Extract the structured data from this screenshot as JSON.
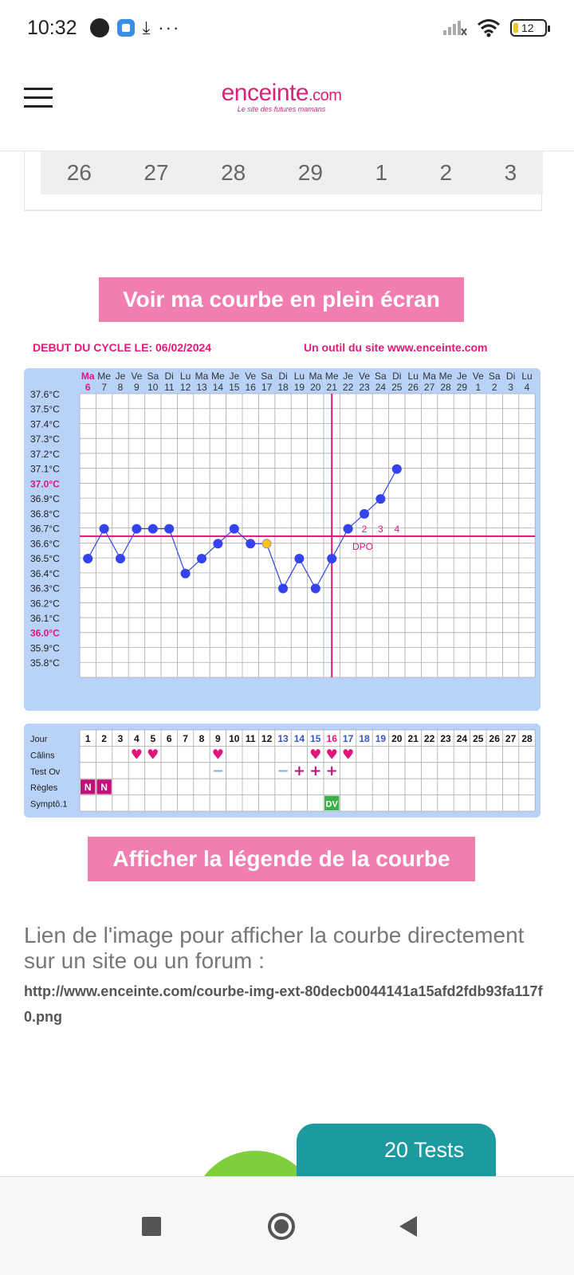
{
  "status_bar": {
    "time": "10:32",
    "more_label": "···",
    "battery_level": "12"
  },
  "header": {
    "logo_main": "enceinte",
    "logo_suffix": ".com",
    "logo_tagline": "Le site des futures mamans"
  },
  "calendar_row": [
    "26",
    "27",
    "28",
    "29",
    "1",
    "2",
    "3"
  ],
  "buttons": {
    "fullscreen": "Voir ma courbe en plein écran",
    "legend": "Afficher la légende de la courbe"
  },
  "cycle": {
    "start_label": "DEBUT DU CYCLE LE: 06/02/2024",
    "tool_label": "Un outil du site www.enceinte.com"
  },
  "chart_data": {
    "type": "line",
    "day_names": [
      "Ma",
      "Me",
      "Je",
      "Ve",
      "Sa",
      "Di",
      "Lu",
      "Ma",
      "Me",
      "Je",
      "Ve",
      "Sa",
      "Di",
      "Lu",
      "Ma",
      "Me",
      "Je",
      "Ve",
      "Sa",
      "Di",
      "Lu",
      "Ma",
      "Me",
      "Je",
      "Ve",
      "Sa",
      "Di",
      "Lu"
    ],
    "day_numbers": [
      "6",
      "7",
      "8",
      "9",
      "10",
      "11",
      "12",
      "13",
      "14",
      "15",
      "16",
      "17",
      "18",
      "19",
      "20",
      "21",
      "22",
      "23",
      "24",
      "25",
      "26",
      "27",
      "28",
      "29",
      "1",
      "2",
      "3",
      "4"
    ],
    "y_labels": [
      "37.6°C",
      "37.5°C",
      "37.4°C",
      "37.3°C",
      "37.2°C",
      "37.1°C",
      "37.0°C",
      "36.9°C",
      "36.8°C",
      "36.7°C",
      "36.6°C",
      "36.5°C",
      "36.4°C",
      "36.3°C",
      "36.2°C",
      "36.1°C",
      "36.0°C",
      "35.9°C",
      "35.8°C"
    ],
    "highlight_y_labels": [
      "37.0°C",
      "36.0°C"
    ],
    "ylim": [
      35.7,
      37.6
    ],
    "temperatures": [
      36.5,
      36.7,
      36.5,
      36.7,
      36.7,
      36.7,
      36.4,
      36.5,
      36.6,
      36.7,
      36.6,
      36.6,
      36.3,
      36.5,
      36.3,
      36.5,
      36.7,
      36.8,
      36.9,
      37.1
    ],
    "special_point_index": 11,
    "coverline": 36.65,
    "ovulation_day_index": 15,
    "dpo_labels": [
      "2",
      "3",
      "4"
    ],
    "dpo_start_index": 17,
    "dpo_text": "DPO",
    "colors": {
      "line": "#3344ee",
      "point": "#3344ee",
      "special_point": "#f5c518",
      "coverline": "#e0157a",
      "highlight": "#e0157a"
    }
  },
  "table": {
    "row_labels": [
      "Jour",
      "Câlins",
      "Test Ov",
      "Règles",
      "Symptô.1"
    ],
    "days": [
      "1",
      "2",
      "3",
      "4",
      "5",
      "6",
      "7",
      "8",
      "9",
      "10",
      "11",
      "12",
      "13",
      "14",
      "15",
      "16",
      "17",
      "18",
      "19",
      "20",
      "21",
      "22",
      "23",
      "24",
      "25",
      "26",
      "27",
      "28"
    ],
    "blue_day_indices": [
      12,
      13,
      14,
      16,
      17,
      18
    ],
    "pink_day_index": 15,
    "calins_days": [
      4,
      5,
      9,
      15,
      16,
      17
    ],
    "test_ov": [
      {
        "day": 9,
        "mark": "−"
      },
      {
        "day": 13,
        "mark": "−"
      },
      {
        "day": 14,
        "mark": "+"
      },
      {
        "day": 15,
        "mark": "+"
      },
      {
        "day": 16,
        "mark": "+"
      }
    ],
    "regles": [
      {
        "day": 1,
        "mark": "N"
      },
      {
        "day": 2,
        "mark": "N"
      }
    ],
    "symptome": [
      {
        "day": 16,
        "mark": "DV"
      }
    ]
  },
  "link": {
    "title": "Lien de l'image pour afficher la courbe directement sur un site ou un forum :",
    "url": "http://www.enceinte.com/courbe-img-ext-80decb0044141a15afd2fdb93fa117f0.png"
  },
  "ad": {
    "text": "20 Tests"
  }
}
